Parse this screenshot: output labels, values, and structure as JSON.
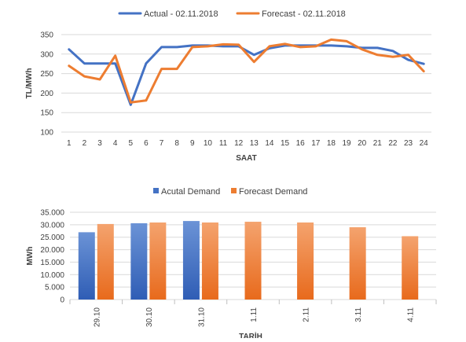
{
  "chart_data": [
    {
      "type": "line",
      "xlabel": "SAAT",
      "ylabel": "TL/MWh",
      "ylim": [
        100,
        350
      ],
      "yticks": [
        100,
        150,
        200,
        250,
        300,
        350
      ],
      "x": [
        "1",
        "2",
        "3",
        "4",
        "5",
        "6",
        "7",
        "8",
        "9",
        "10",
        "11",
        "12",
        "13",
        "14",
        "15",
        "16",
        "17",
        "18",
        "19",
        "20",
        "21",
        "22",
        "23",
        "24"
      ],
      "grid": true,
      "legend_position": "top",
      "series": [
        {
          "name": "Actual - 02.11.2018",
          "color": "#4472C4",
          "values": [
            312,
            276,
            276,
            276,
            170,
            276,
            318,
            318,
            322,
            322,
            320,
            320,
            298,
            315,
            322,
            322,
            322,
            322,
            320,
            316,
            316,
            308,
            285,
            275
          ]
        },
        {
          "name": "Forecast - 02.11.2018",
          "color": "#ED7D31",
          "values": [
            270,
            243,
            235,
            296,
            176,
            181,
            262,
            262,
            318,
            320,
            325,
            324,
            280,
            320,
            326,
            318,
            320,
            337,
            333,
            312,
            298,
            293,
            298,
            256
          ]
        }
      ]
    },
    {
      "type": "bar",
      "xlabel": "TARİH",
      "ylabel": "MWh",
      "ylim": [
        0,
        35000
      ],
      "yticks": [
        "0",
        "5.000",
        "10.000",
        "15.000",
        "20.000",
        "25.000",
        "30.000",
        "35.000"
      ],
      "categories": [
        "29.10",
        "30.10",
        "31.10",
        "1.11",
        "2.11",
        "3.11",
        "4.11"
      ],
      "legend_position": "top",
      "series": [
        {
          "name": "Acutal Demand",
          "color": "#4472C4",
          "values": [
            27000,
            30600,
            31500,
            null,
            null,
            null,
            null
          ]
        },
        {
          "name": "Forecast Demand",
          "color": "#ED7D31",
          "values": [
            30300,
            30900,
            30900,
            31200,
            30900,
            29000,
            25400
          ]
        }
      ]
    }
  ]
}
